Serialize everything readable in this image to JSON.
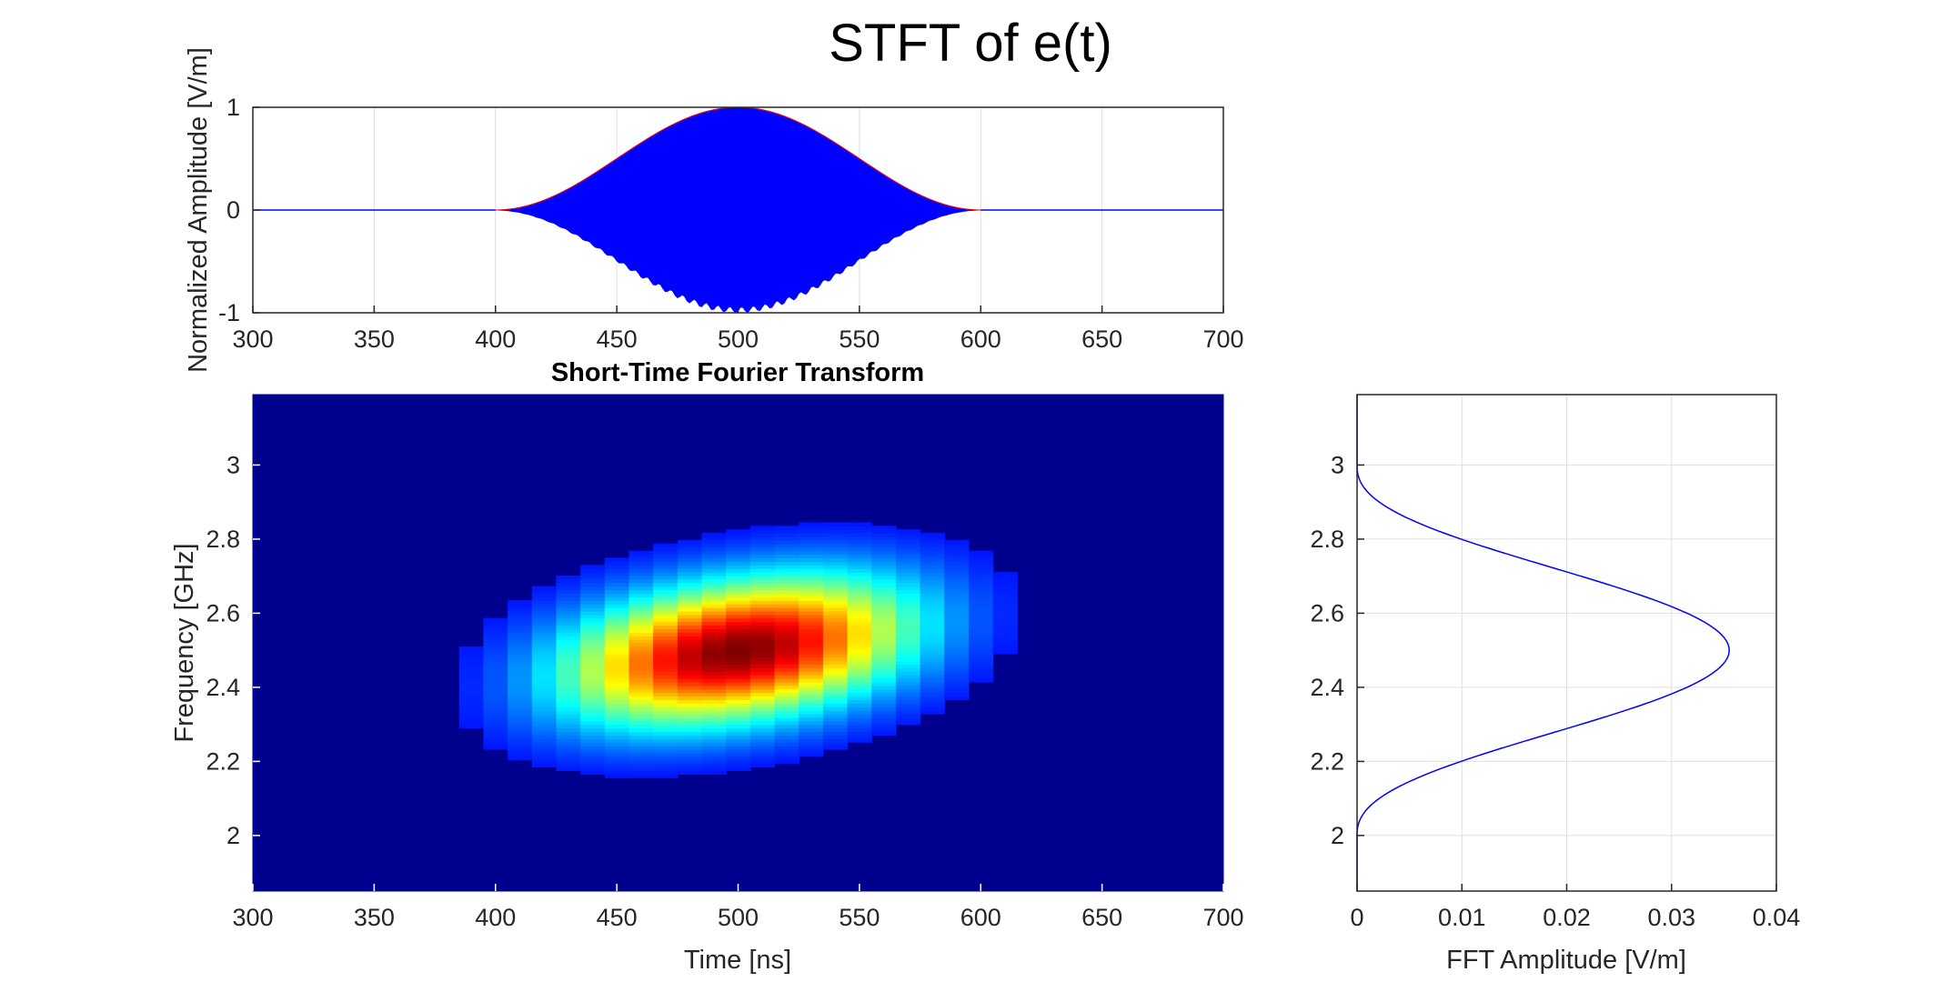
{
  "figure": {
    "title": "STFT of  e(t)"
  },
  "chart_data": [
    {
      "type": "line",
      "id": "signal",
      "title": "",
      "xlabel": "",
      "ylabel": "Normalized Amplitude [V/m]",
      "xlim": [
        300,
        700
      ],
      "ylim": [
        -1,
        1
      ],
      "xticks": [
        "300",
        "350",
        "400",
        "450",
        "500",
        "550",
        "600",
        "650",
        "700"
      ],
      "yticks": [
        "-1",
        "0",
        "1"
      ],
      "grid": true,
      "series": [
        {
          "description": "chirped carrier under a raised-cosine envelope",
          "color": "#0000ff",
          "envelope_start": 400,
          "envelope_end": 600,
          "envelope_peak": 1
        },
        {
          "description": "envelope",
          "color": "#ff0000",
          "envelope_start": 400,
          "envelope_end": 600,
          "envelope_peak": 1
        }
      ]
    },
    {
      "type": "heatmap",
      "id": "stft",
      "title": "Short-Time Fourier Transform",
      "xlabel": "Time [ns]",
      "ylabel": "Frequency [GHz]",
      "xlim": [
        300,
        700
      ],
      "ylim": [
        1.85,
        3.19
      ],
      "xticks": [
        "300",
        "350",
        "400",
        "450",
        "500",
        "550",
        "600",
        "650",
        "700"
      ],
      "yticks": [
        "2",
        "2.2",
        "2.4",
        "2.6",
        "2.8",
        "3"
      ],
      "colormap": "jet",
      "grid": false,
      "time_start": 320,
      "time_step": 10,
      "columns": 36,
      "chirp_f_start": 2.05,
      "chirp_f_end": 2.95,
      "signal_start": 300,
      "signal_end": 700,
      "center_freq": 2.5,
      "freq_sigma": 0.17
    },
    {
      "type": "line",
      "id": "spectrum",
      "title": "",
      "xlabel": "FFT Amplitude [V/m]",
      "ylabel": "",
      "xlim": [
        0,
        0.04
      ],
      "ylim": [
        1.85,
        3.19
      ],
      "xticks": [
        "0",
        "0.01",
        "0.02",
        "0.03",
        "0.04"
      ],
      "yticks": [
        "2",
        "2.2",
        "2.4",
        "2.6",
        "2.8",
        "3"
      ],
      "grid": true,
      "series": [
        {
          "description": "FFT magnitude",
          "color": "#0000ff",
          "peak_freq": 2.5,
          "peak_amplitude": 0.0355,
          "band_low": 2.0,
          "band_high": 3.0
        }
      ]
    }
  ]
}
